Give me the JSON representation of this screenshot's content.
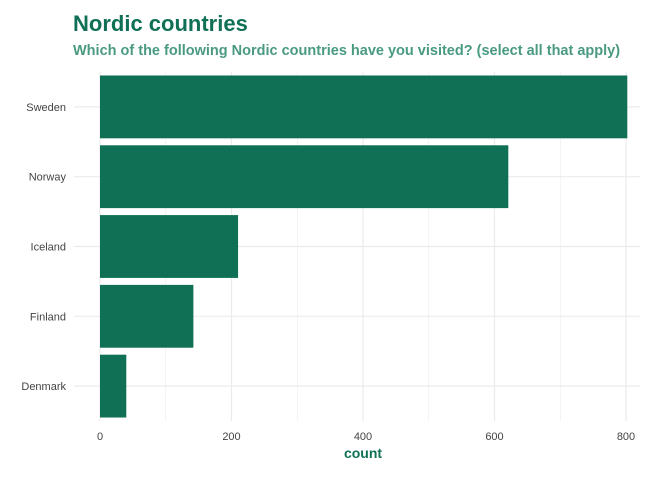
{
  "chart_data": {
    "type": "bar",
    "orientation": "horizontal",
    "title": "Nordic countries",
    "subtitle": "Which of the following Nordic countries have you visited? (select all that apply)",
    "xlabel": "count",
    "ylabel": "",
    "categories": [
      "Sweden",
      "Norway",
      "Iceland",
      "Finland",
      "Denmark"
    ],
    "values": [
      802,
      621,
      210,
      142,
      40
    ],
    "xlim": [
      0,
      840
    ],
    "xticks": [
      0,
      200,
      400,
      600,
      800
    ],
    "grid": true,
    "bar_color": "#0f7055",
    "title_color": "#0f7055",
    "subtitle_color": "#4a9a82",
    "grid_color": "#ebebeb"
  }
}
